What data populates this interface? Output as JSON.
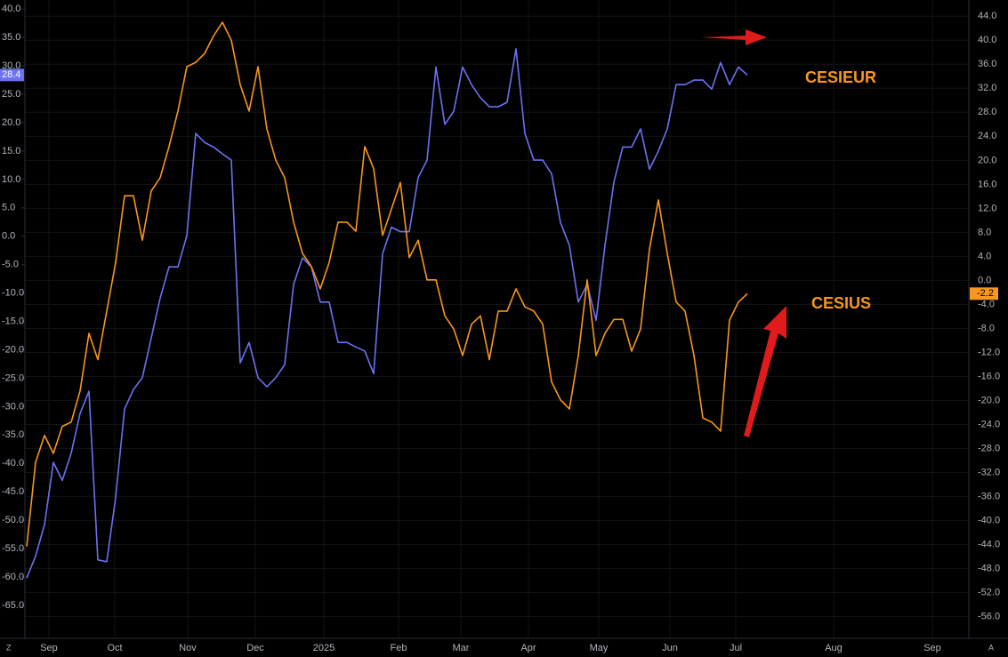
{
  "chart_data": {
    "type": "line",
    "x": [
      0,
      1,
      2,
      3,
      4,
      5,
      6,
      7,
      8,
      9,
      10,
      11,
      12,
      13,
      14,
      15,
      16,
      17,
      18,
      19,
      20,
      21,
      22,
      23,
      24,
      25,
      26,
      27,
      28,
      29,
      30,
      31,
      32,
      33,
      34,
      35,
      36,
      37,
      38,
      39,
      40,
      41,
      42,
      43,
      44,
      45,
      46,
      47,
      48,
      49,
      50,
      51,
      52,
      53,
      54,
      55,
      56,
      57,
      58,
      59,
      60,
      61,
      62,
      63,
      64,
      65,
      66,
      67,
      68,
      69,
      70,
      71,
      72,
      73,
      74,
      75,
      76,
      77,
      78,
      79,
      80,
      81
    ],
    "xlim": [
      -3,
      105.8
    ],
    "xticks": [
      {
        "value": 2.5,
        "label": "Sep"
      },
      {
        "value": 9.9,
        "label": "Oct"
      },
      {
        "value": 18.1,
        "label": "Nov"
      },
      {
        "value": 25.7,
        "label": "Dec"
      },
      {
        "value": 33.4,
        "label": "2025"
      },
      {
        "value": 41.8,
        "label": "Feb"
      },
      {
        "value": 48.8,
        "label": "Mar"
      },
      {
        "value": 56.4,
        "label": "Apr"
      },
      {
        "value": 64.3,
        "label": "May"
      },
      {
        "value": 72.3,
        "label": "Jun"
      },
      {
        "value": 79.7,
        "label": "Jul"
      },
      {
        "value": 90.7,
        "label": "Aug"
      },
      {
        "value": 101.8,
        "label": "Sep"
      }
    ],
    "ylim": [
      -70.8,
      41.6
    ],
    "yticks": [
      {
        "value": 40,
        "label": "40.0"
      },
      {
        "value": 35,
        "label": "35.0"
      },
      {
        "value": 30,
        "label": "30.0"
      },
      {
        "value": 25,
        "label": "25.0"
      },
      {
        "value": 20,
        "label": "20.0"
      },
      {
        "value": 15,
        "label": "15.0"
      },
      {
        "value": 10,
        "label": "10.0"
      },
      {
        "value": 5,
        "label": "5.0"
      },
      {
        "value": 0,
        "label": "0.0"
      },
      {
        "value": -5,
        "label": "-5.0"
      },
      {
        "value": -10,
        "label": "-10.0"
      },
      {
        "value": -15,
        "label": "-15.0"
      },
      {
        "value": -20,
        "label": "-20.0"
      },
      {
        "value": -25,
        "label": "-25.0"
      },
      {
        "value": -30,
        "label": "-30.0"
      },
      {
        "value": -35,
        "label": "-35.0"
      },
      {
        "value": -40,
        "label": "-40.0"
      },
      {
        "value": -45,
        "label": "-45.0"
      },
      {
        "value": -50,
        "label": "-50.0"
      },
      {
        "value": -55,
        "label": "-55.0"
      },
      {
        "value": -60,
        "label": "-60.0"
      },
      {
        "value": -65,
        "label": "-65.0"
      }
    ],
    "y2lim": [
      -59.6,
      46.7
    ],
    "y2ticks": [
      {
        "value": 44,
        "label": "44.0"
      },
      {
        "value": 40,
        "label": "40.0"
      },
      {
        "value": 36,
        "label": "36.0"
      },
      {
        "value": 32,
        "label": "32.0"
      },
      {
        "value": 28,
        "label": "28.0"
      },
      {
        "value": 24,
        "label": "24.0"
      },
      {
        "value": 20,
        "label": "20.0"
      },
      {
        "value": 16,
        "label": "16.0"
      },
      {
        "value": 12,
        "label": "12.0"
      },
      {
        "value": 8,
        "label": "8.0"
      },
      {
        "value": 4,
        "label": "4.0"
      },
      {
        "value": 0,
        "label": "0.0"
      },
      {
        "value": -4,
        "label": "-4.0"
      },
      {
        "value": -8,
        "label": "-8.0"
      },
      {
        "value": -12,
        "label": "-12.0"
      },
      {
        "value": -16,
        "label": "-16.0"
      },
      {
        "value": -20,
        "label": "-20.0"
      },
      {
        "value": -24,
        "label": "-24.0"
      },
      {
        "value": -28,
        "label": "-28.0"
      },
      {
        "value": -32,
        "label": "-32.0"
      },
      {
        "value": -36,
        "label": "-36.0"
      },
      {
        "value": -40,
        "label": "-40.0"
      },
      {
        "value": -44,
        "label": "-44.0"
      },
      {
        "value": -48,
        "label": "-48.0"
      },
      {
        "value": -52,
        "label": "-52.0"
      },
      {
        "value": -56,
        "label": "-56.0"
      }
    ],
    "grid": true,
    "series": [
      {
        "name": "CESIEUR",
        "color": "#6b72f2",
        "price_label": "28.4",
        "values": [
          -60.2,
          -56.3,
          -50.8,
          -39.8,
          -43.0,
          -38.2,
          -31.2,
          -27.3,
          -57.0,
          -57.3,
          -46.0,
          -30.4,
          -27.0,
          -24.9,
          -17.9,
          -10.9,
          -5.4,
          -5.4,
          0.1,
          18.1,
          16.5,
          15.7,
          14.5,
          13.4,
          -22.3,
          -18.7,
          -24.9,
          -26.5,
          -24.9,
          -22.6,
          -8.5,
          -3.8,
          -5.4,
          -11.6,
          -11.6,
          -18.7,
          -18.7,
          -19.5,
          -20.2,
          -24.2,
          -3.1,
          1.6,
          0.8,
          0.8,
          10.3,
          13.4,
          29.8,
          19.7,
          22.0,
          29.8,
          26.7,
          24.4,
          22.8,
          22.8,
          23.6,
          33.0,
          18.1,
          13.4,
          13.4,
          11.0,
          2.4,
          -1.6,
          -11.6,
          -8.5,
          -14.8,
          -1.6,
          9.5,
          15.7,
          15.7,
          18.9,
          11.8,
          15.0,
          18.9,
          26.7,
          26.7,
          27.5,
          27.5,
          25.9,
          30.6,
          26.7,
          29.8,
          28.4
        ]
      },
      {
        "name": "CESIUS",
        "color": "#f7971e",
        "axis": "y2",
        "price_label": "-2.2",
        "values": [
          -44.3,
          -30.3,
          -25.8,
          -28.8,
          -24.3,
          -23.6,
          -18.4,
          -8.8,
          -13.2,
          -5.1,
          3.0,
          14.1,
          14.1,
          6.7,
          14.9,
          17.1,
          22.3,
          28.2,
          35.6,
          36.3,
          37.8,
          40.7,
          43.0,
          40.0,
          32.6,
          28.2,
          35.6,
          25.2,
          20.0,
          17.1,
          9.7,
          4.5,
          2.3,
          -1.4,
          3.0,
          9.7,
          9.7,
          8.2,
          22.3,
          18.6,
          7.5,
          11.9,
          16.3,
          3.8,
          6.7,
          0.1,
          0.1,
          -5.9,
          -8.1,
          -12.5,
          -7.3,
          -5.9,
          -13.2,
          -5.1,
          -5.1,
          -1.4,
          -4.4,
          -5.1,
          -7.3,
          -16.9,
          -19.9,
          -21.4,
          -12.5,
          0.1,
          -12.5,
          -8.8,
          -6.5,
          -6.5,
          -11.8,
          -8.1,
          5.2,
          13.4,
          4.5,
          -3.6,
          -5.1,
          -12.5,
          -22.9,
          -23.6,
          -25.1,
          -6.6,
          -3.6,
          -2.2
        ]
      }
    ],
    "left_button": "Z",
    "right_button": "A"
  }
}
